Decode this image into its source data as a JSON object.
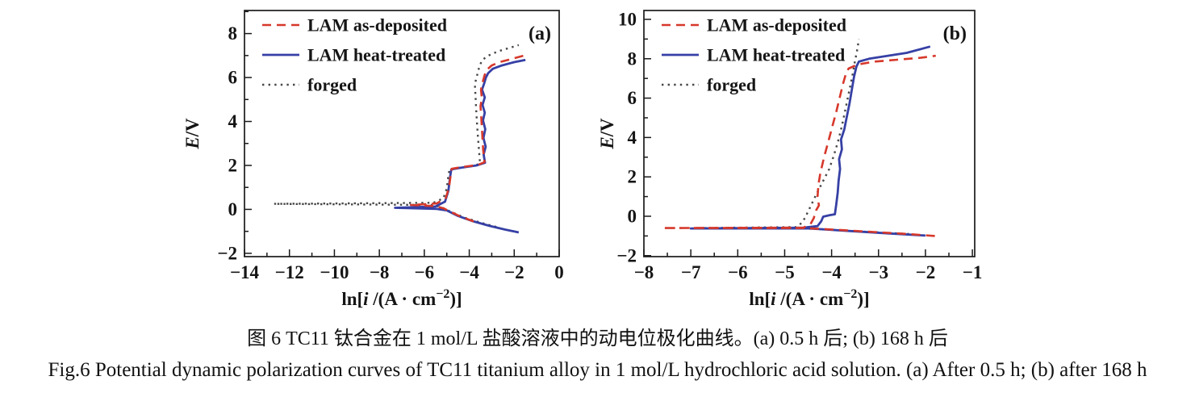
{
  "figure": {
    "caption_zh": "图 6  TC11 钛合金在 1 mol/L 盐酸溶液中的动电位极化曲线。(a) 0.5 h 后; (b) 168 h 后",
    "caption_en": "Fig.6  Potential dynamic polarization curves of TC11 titanium alloy in 1 mol/L hydrochloric acid solution. (a) After 0.5 h; (b) after 168 h"
  },
  "colors": {
    "as_deposited": "#d6382b",
    "heat_treated": "#3640a5",
    "forged": "#474747",
    "axis": "#1a1a1a"
  },
  "chart_data": [
    {
      "id": "a",
      "type": "line",
      "panel_label": "(a)",
      "xlabel": "ln[i /(A · cm−2)]",
      "ylabel": "E/V",
      "xlabel_parts": [
        {
          "t": "ln[",
          "s": "n"
        },
        {
          "t": "i",
          "s": "i"
        },
        {
          "t": " /(A · cm",
          "s": "n"
        },
        {
          "t": "−2",
          "s": "sup"
        },
        {
          "t": ")]",
          "s": "n"
        }
      ],
      "ylabel_parts": [
        {
          "t": "E",
          "s": "i"
        },
        {
          "t": "/V",
          "s": "n"
        }
      ],
      "xlim": [
        -14,
        0
      ],
      "ylim": [
        -2.15,
        9.05
      ],
      "xticks": [
        -14,
        -12,
        -10,
        -8,
        -6,
        -4,
        -2,
        0
      ],
      "yticks": [
        -2,
        0,
        2,
        4,
        6,
        8
      ],
      "x_minor_step": 1,
      "y_minor_step": 1,
      "grid": false,
      "legend_position": "top-left",
      "legend": [
        "LAM as-deposited",
        "LAM heat-treated",
        "forged"
      ],
      "series": [
        {
          "name": "LAM as-deposited",
          "color_key": "as_deposited",
          "style": "dashed",
          "points": [
            [
              -3.8,
              -0.55
            ],
            [
              -4.4,
              -0.32
            ],
            [
              -4.85,
              -0.1
            ],
            [
              -5.15,
              0.05
            ],
            [
              -5.5,
              0.15
            ],
            [
              -6.6,
              0.2
            ],
            [
              -5.45,
              0.27
            ],
            [
              -5.05,
              0.5
            ],
            [
              -4.9,
              1.0
            ],
            [
              -4.82,
              1.6
            ],
            [
              -4.78,
              1.85
            ],
            [
              -4.3,
              1.93
            ],
            [
              -3.62,
              2.02
            ],
            [
              -3.32,
              2.15
            ],
            [
              -3.38,
              2.7
            ],
            [
              -3.42,
              3.4
            ],
            [
              -3.46,
              4.1
            ],
            [
              -3.5,
              4.7
            ],
            [
              -3.44,
              5.05
            ],
            [
              -3.48,
              5.45
            ],
            [
              -3.4,
              5.8
            ],
            [
              -3.32,
              6.1
            ],
            [
              -3.22,
              6.35
            ],
            [
              -3.0,
              6.55
            ],
            [
              -2.65,
              6.7
            ],
            [
              -2.1,
              6.85
            ],
            [
              -1.55,
              7.0
            ]
          ]
        },
        {
          "name": "LAM heat-treated",
          "color_key": "heat_treated",
          "style": "solid",
          "points": [
            [
              -1.8,
              -1.05
            ],
            [
              -2.4,
              -0.92
            ],
            [
              -3.1,
              -0.75
            ],
            [
              -3.9,
              -0.52
            ],
            [
              -4.5,
              -0.3
            ],
            [
              -5.0,
              -0.05
            ],
            [
              -5.45,
              0.02
            ],
            [
              -7.3,
              0.07
            ],
            [
              -5.5,
              0.13
            ],
            [
              -5.08,
              0.35
            ],
            [
              -4.93,
              0.85
            ],
            [
              -4.85,
              1.5
            ],
            [
              -4.8,
              1.82
            ],
            [
              -4.35,
              1.9
            ],
            [
              -3.68,
              2.0
            ],
            [
              -3.3,
              2.12
            ],
            [
              -3.36,
              2.5
            ],
            [
              -3.27,
              2.85
            ],
            [
              -3.37,
              3.25
            ],
            [
              -3.29,
              3.65
            ],
            [
              -3.39,
              4.05
            ],
            [
              -3.31,
              4.4
            ],
            [
              -3.41,
              4.75
            ],
            [
              -3.31,
              5.1
            ],
            [
              -3.43,
              5.45
            ],
            [
              -3.33,
              5.75
            ],
            [
              -3.26,
              6.0
            ],
            [
              -3.16,
              6.2
            ],
            [
              -2.95,
              6.4
            ],
            [
              -2.55,
              6.55
            ],
            [
              -2.0,
              6.7
            ],
            [
              -1.5,
              6.8
            ]
          ]
        },
        {
          "name": "forged",
          "color_key": "forged",
          "style": "dotted",
          "points": [
            [
              -2.8,
              -0.8
            ],
            [
              -3.5,
              -0.6
            ],
            [
              -4.2,
              -0.38
            ],
            [
              -4.8,
              -0.12
            ],
            [
              -5.2,
              0.08
            ],
            [
              -5.6,
              0.2
            ],
            [
              -12.7,
              0.25
            ],
            [
              -5.6,
              0.3
            ],
            [
              -5.15,
              0.5
            ],
            [
              -5.0,
              0.95
            ],
            [
              -4.93,
              1.55
            ],
            [
              -4.88,
              1.8
            ],
            [
              -4.4,
              1.9
            ],
            [
              -3.75,
              1.98
            ],
            [
              -3.52,
              2.1
            ],
            [
              -3.57,
              2.7
            ],
            [
              -3.63,
              3.5
            ],
            [
              -3.68,
              4.3
            ],
            [
              -3.72,
              5.1
            ],
            [
              -3.75,
              5.7
            ],
            [
              -3.65,
              6.1
            ],
            [
              -3.55,
              6.5
            ],
            [
              -3.42,
              6.8
            ],
            [
              -3.15,
              7.0
            ],
            [
              -2.7,
              7.2
            ],
            [
              -2.2,
              7.35
            ],
            [
              -1.8,
              7.48
            ]
          ]
        }
      ]
    },
    {
      "id": "b",
      "type": "line",
      "panel_label": "(b)",
      "xlabel": "ln[i /(A · cm−2)]",
      "ylabel": "E/V",
      "xlabel_parts": [
        {
          "t": "ln[",
          "s": "n"
        },
        {
          "t": "i",
          "s": "i"
        },
        {
          "t": " /(A · cm",
          "s": "n"
        },
        {
          "t": "−2",
          "s": "sup"
        },
        {
          "t": ")]",
          "s": "n"
        }
      ],
      "ylabel_parts": [
        {
          "t": "E",
          "s": "i"
        },
        {
          "t": "/V",
          "s": "n"
        }
      ],
      "xlim": [
        -8,
        -0.95
      ],
      "ylim": [
        -2.05,
        10.45
      ],
      "xticks": [
        -8,
        -7,
        -6,
        -5,
        -4,
        -3,
        -2,
        -1
      ],
      "yticks": [
        -2,
        0,
        2,
        4,
        6,
        8,
        10
      ],
      "x_minor_step": 0.5,
      "y_minor_step": 1,
      "grid": false,
      "legend_position": "top-left",
      "legend": [
        "LAM as-deposited",
        "LAM heat-treated",
        "forged"
      ],
      "series": [
        {
          "name": "LAM as-deposited",
          "color_key": "as_deposited",
          "style": "dashed",
          "points": [
            [
              -1.8,
              -1.0
            ],
            [
              -2.4,
              -0.9
            ],
            [
              -3.1,
              -0.8
            ],
            [
              -3.8,
              -0.7
            ],
            [
              -4.3,
              -0.63
            ],
            [
              -4.55,
              -0.6
            ],
            [
              -7.6,
              -0.6
            ],
            [
              -4.6,
              -0.58
            ],
            [
              -4.45,
              -0.4
            ],
            [
              -4.38,
              -0.1
            ],
            [
              -4.33,
              0.3
            ],
            [
              -4.27,
              0.55
            ],
            [
              -4.3,
              1.0
            ],
            [
              -4.28,
              1.6
            ],
            [
              -4.24,
              2.2
            ],
            [
              -4.16,
              3.0
            ],
            [
              -4.07,
              3.8
            ],
            [
              -3.98,
              4.6
            ],
            [
              -3.9,
              5.3
            ],
            [
              -3.83,
              6.0
            ],
            [
              -3.76,
              6.7
            ],
            [
              -3.7,
              7.2
            ],
            [
              -3.64,
              7.5
            ],
            [
              -3.45,
              7.7
            ],
            [
              -3.1,
              7.85
            ],
            [
              -2.6,
              7.95
            ],
            [
              -2.1,
              8.05
            ],
            [
              -1.78,
              8.15
            ]
          ]
        },
        {
          "name": "LAM heat-treated",
          "color_key": "heat_treated",
          "style": "solid",
          "points": [
            [
              -2.0,
              -0.98
            ],
            [
              -2.8,
              -0.87
            ],
            [
              -3.6,
              -0.75
            ],
            [
              -4.2,
              -0.66
            ],
            [
              -4.5,
              -0.62
            ],
            [
              -7.0,
              -0.62
            ],
            [
              -4.6,
              -0.58
            ],
            [
              -4.3,
              -0.5
            ],
            [
              -4.22,
              -0.25
            ],
            [
              -4.18,
              -0.02
            ],
            [
              -4.05,
              0.05
            ],
            [
              -3.93,
              0.1
            ],
            [
              -3.9,
              0.6
            ],
            [
              -3.87,
              1.2
            ],
            [
              -3.85,
              1.8
            ],
            [
              -3.82,
              2.4
            ],
            [
              -3.84,
              2.9
            ],
            [
              -3.78,
              3.4
            ],
            [
              -3.8,
              3.9
            ],
            [
              -3.73,
              4.4
            ],
            [
              -3.68,
              5.0
            ],
            [
              -3.62,
              5.7
            ],
            [
              -3.57,
              6.4
            ],
            [
              -3.52,
              7.1
            ],
            [
              -3.47,
              7.6
            ],
            [
              -3.42,
              7.85
            ],
            [
              -3.2,
              8.0
            ],
            [
              -2.8,
              8.15
            ],
            [
              -2.4,
              8.3
            ],
            [
              -1.9,
              8.62
            ]
          ]
        },
        {
          "name": "forged",
          "color_key": "forged",
          "style": "dotted",
          "points": [
            [
              -2.35,
              -0.9
            ],
            [
              -3.0,
              -0.82
            ],
            [
              -3.7,
              -0.73
            ],
            [
              -4.3,
              -0.65
            ],
            [
              -4.6,
              -0.61
            ],
            [
              -6.9,
              -0.6
            ],
            [
              -4.75,
              -0.55
            ],
            [
              -4.62,
              -0.3
            ],
            [
              -4.55,
              0.0
            ],
            [
              -4.45,
              0.5
            ],
            [
              -4.35,
              1.0
            ],
            [
              -4.2,
              1.7
            ],
            [
              -4.05,
              2.4
            ],
            [
              -3.95,
              3.1
            ],
            [
              -3.85,
              3.9
            ],
            [
              -3.77,
              4.7
            ],
            [
              -3.7,
              5.5
            ],
            [
              -3.63,
              6.3
            ],
            [
              -3.56,
              7.1
            ],
            [
              -3.5,
              7.9
            ],
            [
              -3.45,
              8.5
            ],
            [
              -3.42,
              9.0
            ]
          ]
        }
      ]
    }
  ]
}
